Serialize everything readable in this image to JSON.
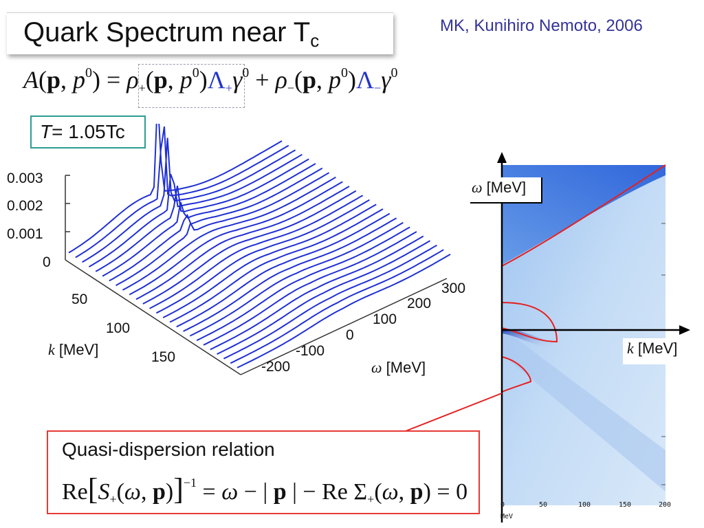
{
  "title": {
    "main": "Quark Spectrum near T",
    "sub": "c"
  },
  "author": "MK, Kunihiro Nemoto, 2006",
  "spectral_eq": {
    "lhs": "A(p, p",
    "sup0": "0",
    "close": ") = ",
    "rho": "ρ",
    "plus": "+",
    "minus": "−",
    "args": "(p, p",
    "lambda": "Λ",
    "gamma": "γ",
    "plus_op": " + "
  },
  "temperature": {
    "var": "T",
    "value": "= 1.05Tc"
  },
  "plot3d": {
    "z_ticks": [
      "0.003",
      "0.002",
      "0.001",
      "0"
    ],
    "k_ticks": [
      "50",
      "100",
      "150"
    ],
    "omega_ticks": [
      "300",
      "200",
      "100",
      "0",
      "-100",
      "-200"
    ],
    "k_label": {
      "var": "k",
      "unit": " [MeV]"
    },
    "omega_label": {
      "var": "ω",
      "unit": " [MeV]"
    }
  },
  "heatmap": {
    "omega_label": {
      "var": "ω",
      "unit": " [MeV]"
    },
    "k_label": {
      "var": "k",
      "unit": " [MeV]"
    },
    "x_ticks": [
      "0",
      "50",
      "100",
      "150",
      "200"
    ],
    "x_unit": "MeV",
    "colors": {
      "background": "#b8d4f4",
      "intense": "#1a5fd9",
      "curve": "#e52020"
    }
  },
  "quasi": {
    "title": "Quasi-dispersion relation",
    "re": "Re",
    "S": "S",
    "plus": "+",
    "om_p": "(ω, p)",
    "inv": "−1",
    "rhs1": " = ω − | ",
    "p": "p",
    "rhs2": " | − Re Σ",
    "zero": " = 0"
  }
}
